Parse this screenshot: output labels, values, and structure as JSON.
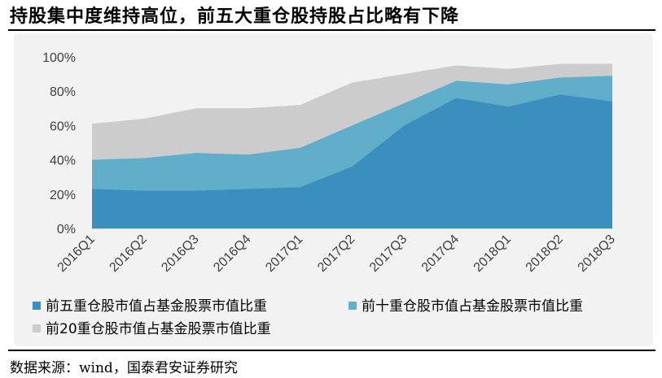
{
  "title": "持股集中度维持高位，前五大重仓股持股占比略有下降",
  "source": "数据来源：wind，国泰君安证券研究",
  "colors": {
    "top5": "#3b8fbf",
    "top10": "#60aec9",
    "top20": "#cccccc",
    "panel": "#f2f2f2"
  },
  "chart_data": {
    "type": "area",
    "categories": [
      "2016Q1",
      "2016Q2",
      "2016Q3",
      "2016Q4",
      "2017Q1",
      "2017Q2",
      "2017Q3",
      "2017Q4",
      "2018Q1",
      "2018Q2",
      "2018Q3"
    ],
    "ylim": [
      0,
      100
    ],
    "yticks": [
      "0%",
      "20%",
      "40%",
      "60%",
      "80%",
      "100%"
    ],
    "series": [
      {
        "name": "前五重仓股市值占基金股票市值比重",
        "values": [
          23,
          22,
          22,
          23,
          24,
          36,
          60,
          76,
          71,
          78,
          74
        ]
      },
      {
        "name": "前十重仓股市值占基金股票市值比重",
        "values": [
          40,
          41,
          44,
          43,
          47,
          60,
          73,
          86,
          84,
          88,
          89
        ]
      },
      {
        "name": "前20重仓股市值占基金股票市值比重",
        "values": [
          61,
          64,
          70,
          70,
          72,
          85,
          90,
          95,
          93,
          96,
          96
        ]
      }
    ]
  }
}
